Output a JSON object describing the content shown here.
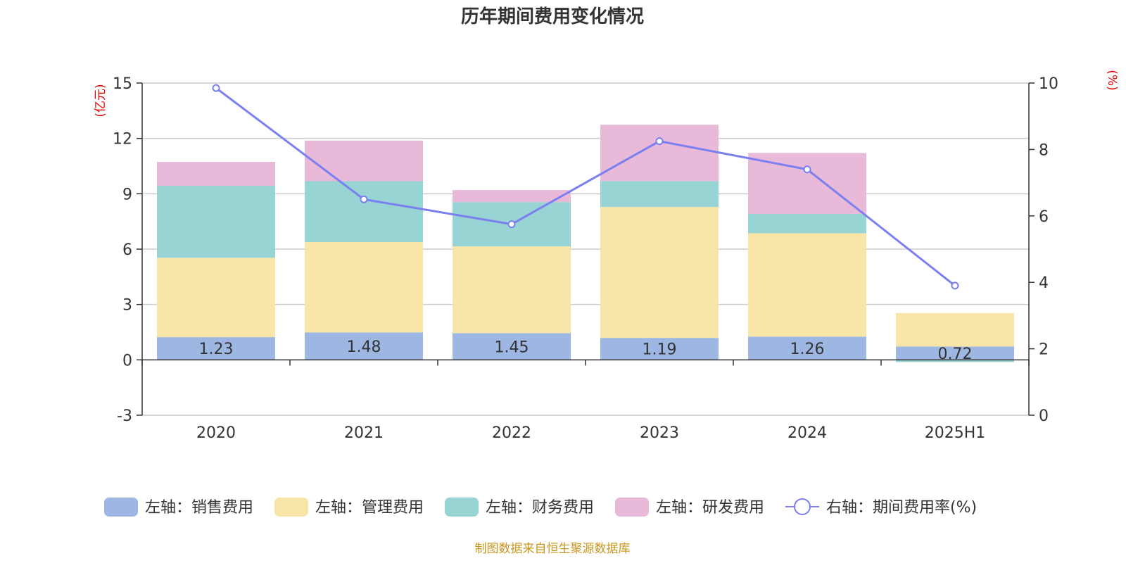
{
  "chart_data": {
    "type": "bar",
    "stacked": true,
    "title": "历年期间费用变化情况",
    "categories": [
      "2020",
      "2021",
      "2022",
      "2023",
      "2024",
      "2025H1"
    ],
    "left_axis": {
      "unit": "(亿元)",
      "ylim": [
        -3,
        15
      ],
      "ticks": [
        "15",
        "12",
        "9",
        "6",
        "3",
        "0",
        "-3"
      ]
    },
    "right_axis": {
      "unit": "(%)",
      "ylim": [
        0,
        10
      ],
      "ticks": [
        "10",
        "8",
        "6",
        "4",
        "2",
        "0"
      ]
    },
    "grid": true,
    "legend_position": "bottom",
    "series": [
      {
        "name": "左轴：销售费用",
        "axis": "left",
        "kind": "bar",
        "color": "#9db6e2",
        "values": [
          1.23,
          1.48,
          1.45,
          1.19,
          1.26,
          0.72
        ],
        "labels": [
          "1.23",
          "1.48",
          "1.45",
          "1.19",
          "1.26",
          "0.72"
        ]
      },
      {
        "name": "左轴：管理费用",
        "axis": "left",
        "kind": "bar",
        "color": "#f8e6a8",
        "values": [
          4.3,
          4.9,
          4.7,
          7.1,
          5.6,
          1.82
        ]
      },
      {
        "name": "左轴：财务费用",
        "axis": "left",
        "kind": "bar",
        "color": "#98d4d4",
        "values": [
          3.9,
          3.3,
          2.4,
          1.4,
          1.05,
          -0.12
        ]
      },
      {
        "name": "左轴：研发费用",
        "axis": "left",
        "kind": "bar",
        "color": "#e8b9d8",
        "values": [
          1.3,
          2.2,
          0.65,
          3.05,
          3.3,
          0
        ]
      },
      {
        "name": "右轴：期间费用率(%)",
        "axis": "right",
        "kind": "line",
        "color": "#7b7ff0",
        "values": [
          9.85,
          6.5,
          5.75,
          8.25,
          7.4,
          3.9
        ]
      }
    ],
    "source": "制图数据来自恒生聚源数据库"
  }
}
